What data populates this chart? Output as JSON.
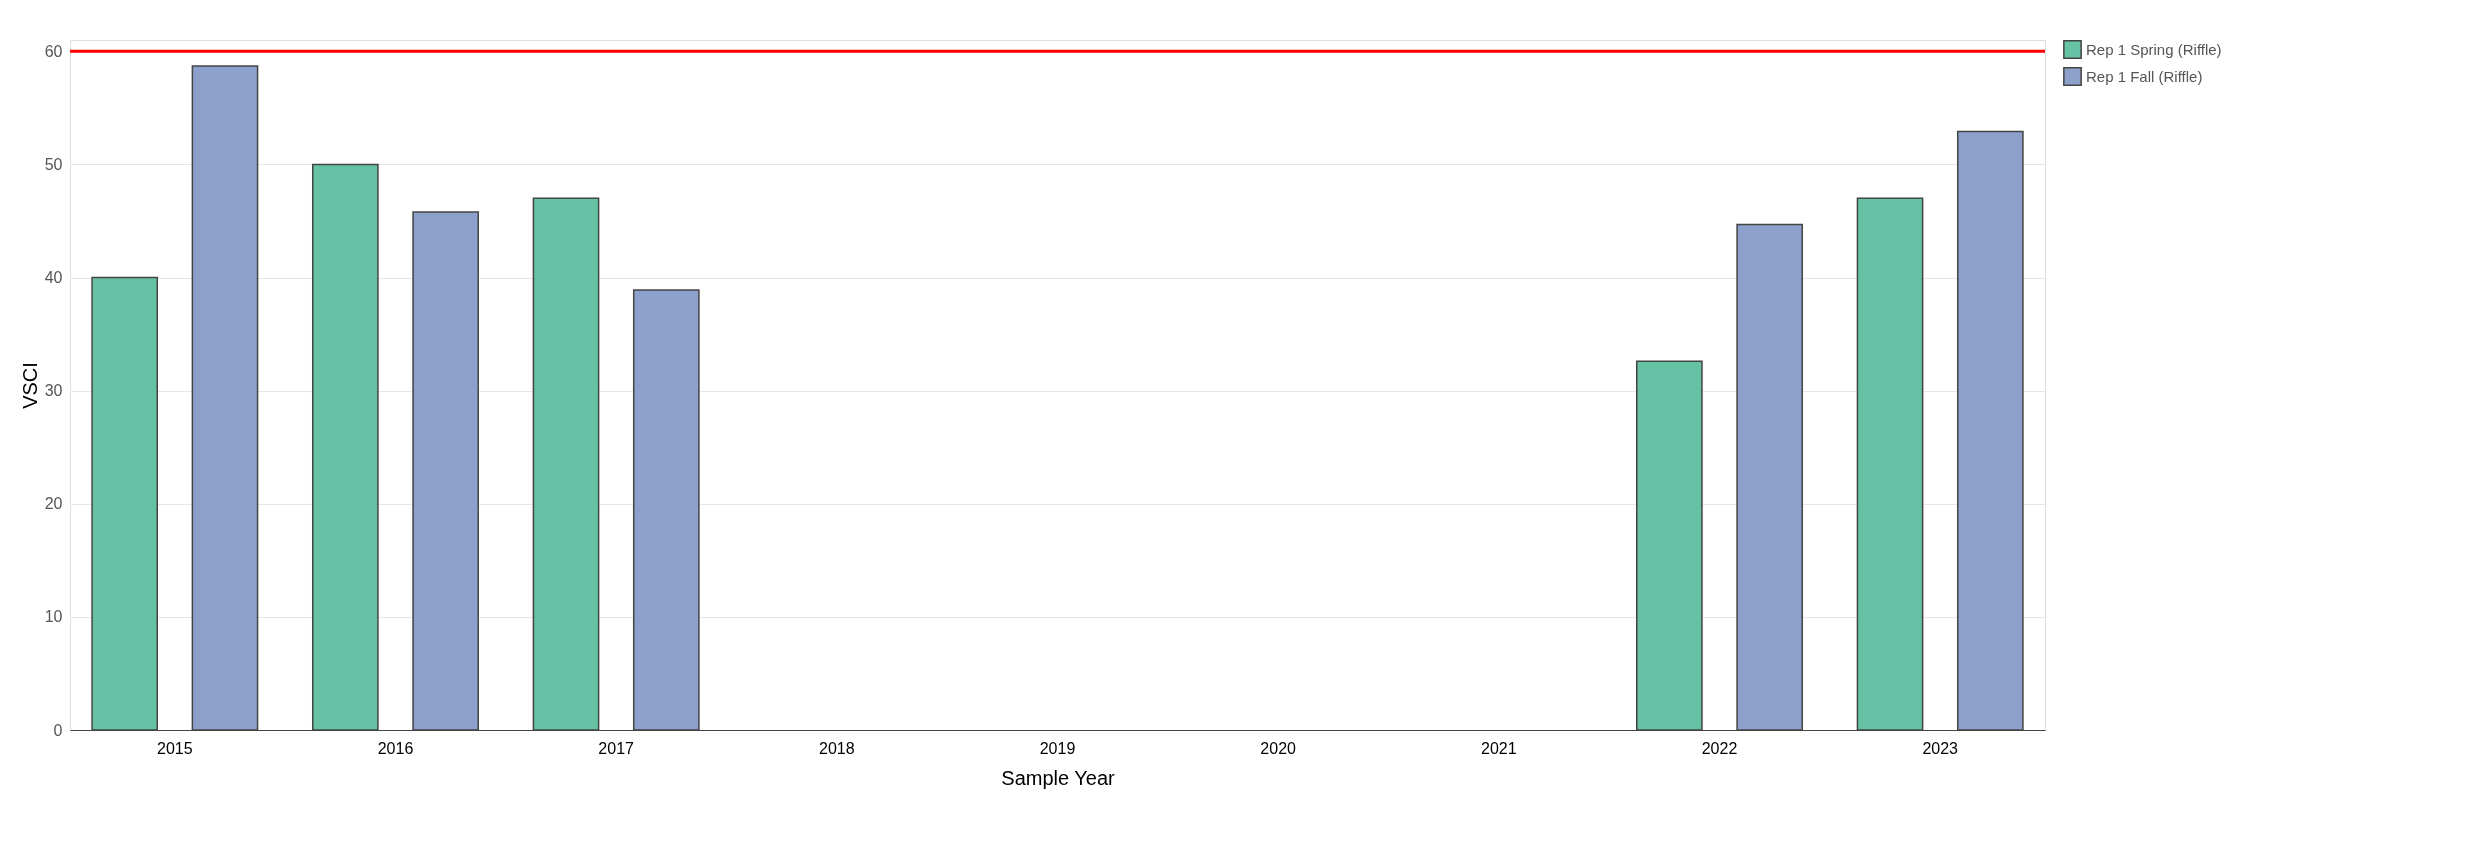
{
  "chart_data": {
    "type": "bar",
    "categories": [
      "2015",
      "2016",
      "2017",
      "2018",
      "2019",
      "2020",
      "2021",
      "2022",
      "2023"
    ],
    "series": [
      {
        "name": "Rep 1 Spring (Riffle)",
        "color": "#66c2a5",
        "values": [
          40,
          50,
          47,
          null,
          null,
          null,
          null,
          32.6,
          47
        ]
      },
      {
        "name": "Rep 1 Fall (Riffle)",
        "color": "#8da0cb",
        "values": [
          58.7,
          45.8,
          38.9,
          null,
          null,
          null,
          null,
          44.7,
          52.9
        ]
      }
    ],
    "xlabel": "Sample Year",
    "ylabel": "VSCI",
    "ylim": [
      0,
      61
    ],
    "yticks": [
      0,
      10,
      20,
      30,
      40,
      50,
      60
    ],
    "ref_lines": [
      {
        "axis": "y",
        "value": 60,
        "color": "#ff0000"
      }
    ],
    "grid": "y",
    "legend": "top right"
  }
}
